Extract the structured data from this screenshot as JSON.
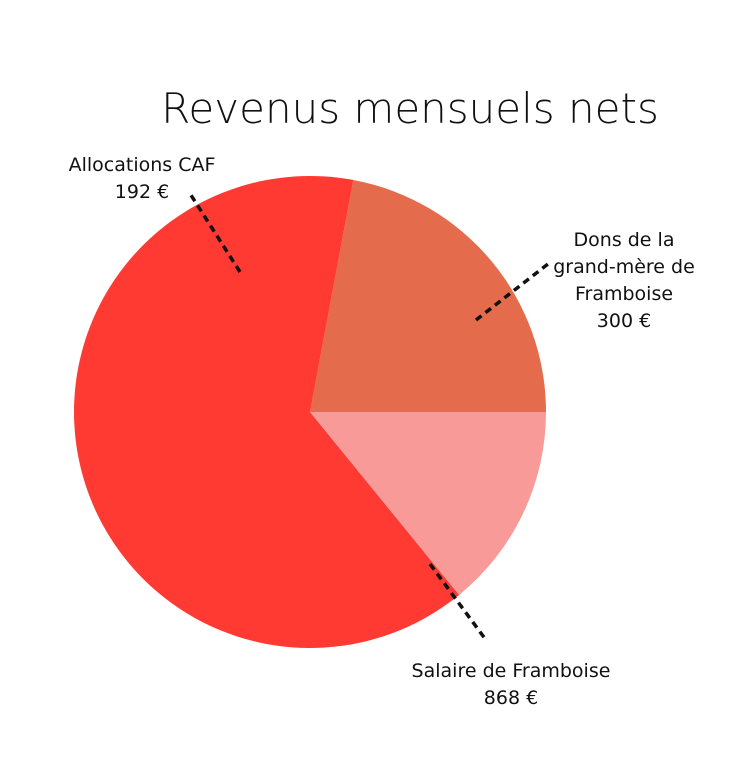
{
  "chart_data": {
    "type": "pie",
    "title": "Revenus mensuels nets",
    "unit": "€",
    "slices": [
      {
        "label_lines": [
          "Dons de la",
          "grand-mère de",
          "Framboise"
        ],
        "value": 300,
        "value_text": "300 €",
        "color": "#e56b4d"
      },
      {
        "label_lines": [
          "Salaire de Framboise"
        ],
        "value": 868,
        "value_text": "868 €",
        "color": "#fe3a33"
      },
      {
        "label_lines": [
          "Allocations CAF"
        ],
        "value": 192,
        "value_text": "192 €",
        "color": "#f79a98"
      }
    ]
  }
}
